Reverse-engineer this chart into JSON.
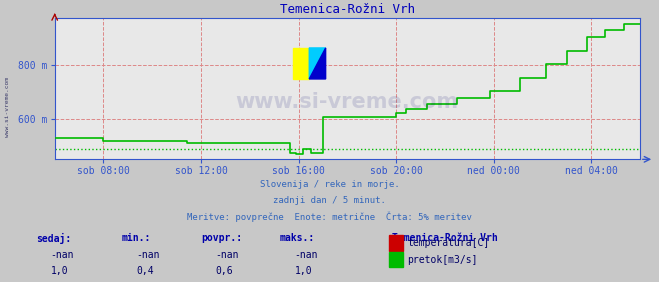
{
  "title": "Temenica-Rožni Vrh",
  "bg_color": "#c8c8c8",
  "plot_bg_color": "#e8e8e8",
  "grid_color": "#dd8888",
  "line_color_flow": "#00bb00",
  "line_color_temp": "#cc0000",
  "axis_color": "#3355cc",
  "title_color": "#0000bb",
  "text_color": "#3366bb",
  "legend_text_color": "#000066",
  "ymin": 450,
  "ymax": 975,
  "yticks": [
    600,
    800
  ],
  "xlim_start": 0,
  "xlim_end": 288,
  "xtick_positions": [
    24,
    72,
    120,
    168,
    216,
    264
  ],
  "xtick_labels": [
    "sob 08:00",
    "sob 12:00",
    "sob 16:00",
    "sob 20:00",
    "ned 00:00",
    "ned 04:00"
  ],
  "avg_line_y": 487,
  "info_lines": [
    "Slovenija / reke in morje.",
    "zadnji dan / 5 minut.",
    "Meritve: povprečne  Enote: metrične  Črta: 5% meritev"
  ],
  "legend_title": "Temenica-Rožni Vrh",
  "legend_items": [
    {
      "label": "temperatura[C]",
      "color": "#cc0000"
    },
    {
      "label": "pretok[m3/s]",
      "color": "#00bb00"
    }
  ],
  "stats_headers": [
    "sedaj:",
    "min.:",
    "povpr.:",
    "maks.:"
  ],
  "stats_temp": [
    "-nan",
    "-nan",
    "-nan",
    "-nan"
  ],
  "stats_flow": [
    "1,0",
    "0,4",
    "0,6",
    "1,0"
  ],
  "flow_x": [
    0,
    24,
    24,
    65,
    65,
    116,
    116,
    119,
    119,
    122,
    122,
    126,
    126,
    132,
    132,
    168,
    168,
    173,
    173,
    183,
    183,
    198,
    198,
    214,
    214,
    229,
    229,
    242,
    242,
    252,
    252,
    262,
    262,
    271,
    271,
    280,
    280,
    288
  ],
  "flow_y": [
    530,
    530,
    518,
    518,
    510,
    510,
    475,
    475,
    468,
    468,
    487,
    487,
    472,
    472,
    608,
    608,
    622,
    622,
    637,
    637,
    657,
    657,
    677,
    677,
    703,
    703,
    753,
    753,
    804,
    804,
    853,
    853,
    905,
    905,
    932,
    932,
    953,
    953
  ],
  "watermark": "www.si-vreme.com",
  "side_watermark": "www.si-vreme.com"
}
